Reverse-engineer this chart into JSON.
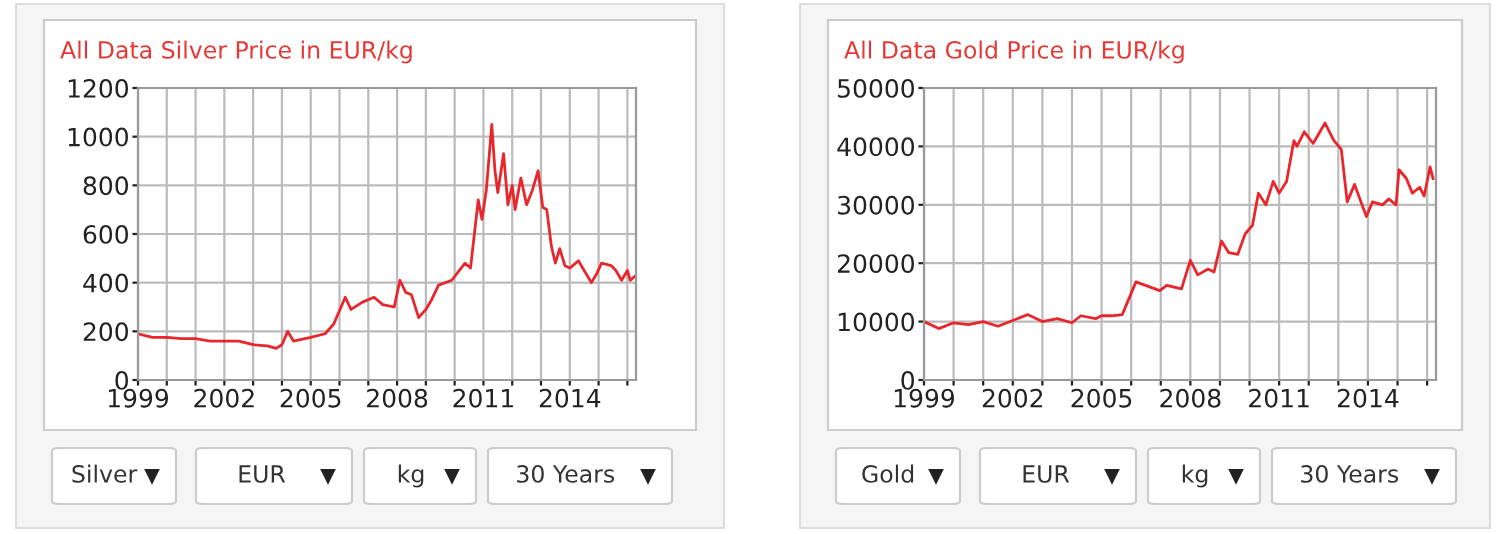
{
  "chart_data": [
    {
      "type": "line",
      "title": "All Data Silver Price in EUR/kg",
      "x": [
        1999.0,
        1999.5,
        2000.0,
        2000.5,
        2001.0,
        2001.5,
        2002.0,
        2002.5,
        2003.0,
        2003.5,
        2003.8,
        2004.0,
        2004.2,
        2004.4,
        2005.0,
        2005.5,
        2005.8,
        2006.2,
        2006.4,
        2006.8,
        2007.2,
        2007.5,
        2007.9,
        2008.1,
        2008.3,
        2008.5,
        2008.75,
        2009.0,
        2009.2,
        2009.44,
        2009.9,
        2010.36,
        2010.55,
        2010.82,
        2010.95,
        2011.1,
        2011.29,
        2011.4,
        2011.5,
        2011.7,
        2011.85,
        2012.0,
        2012.1,
        2012.3,
        2012.5,
        2012.7,
        2012.9,
        2013.06,
        2013.2,
        2013.36,
        2013.5,
        2013.65,
        2013.83,
        2014.0,
        2014.3,
        2014.5,
        2014.75,
        2014.95,
        2015.1,
        2015.44,
        2015.6,
        2015.8,
        2016.0,
        2016.1,
        2016.3
      ],
      "series": [
        {
          "color": "#e8262b",
          "values": [
            190,
            175,
            175,
            170,
            170,
            160,
            160,
            160,
            145,
            140,
            130,
            145,
            200,
            160,
            175,
            190,
            230,
            340,
            290,
            320,
            340,
            310,
            300,
            410,
            360,
            350,
            256,
            290,
            330,
            390,
            410,
            480,
            460,
            740,
            660,
            780,
            1050,
            860,
            770,
            930,
            720,
            800,
            700,
            830,
            720,
            780,
            860,
            710,
            700,
            550,
            480,
            540,
            470,
            460,
            490,
            450,
            400,
            440,
            480,
            470,
            450,
            410,
            450,
            410,
            430
          ]
        }
      ],
      "xlim": [
        1999,
        2016.3
      ],
      "xticks": [
        1999,
        {
          "value": 2000,
          "label": null
        },
        {
          "value": 2001,
          "label": null
        },
        2002,
        {
          "value": 2003,
          "label": null
        },
        {
          "value": 2004,
          "label": null
        },
        2005,
        {
          "value": 2006,
          "label": null
        },
        {
          "value": 2007,
          "label": null
        },
        2008,
        {
          "value": 2009,
          "label": null
        },
        {
          "value": 2010,
          "label": null
        },
        2011,
        {
          "value": 2012,
          "label": null
        },
        {
          "value": 2013,
          "label": null
        },
        2014,
        {
          "value": 2015,
          "label": null
        },
        {
          "value": 2016,
          "label": null
        }
      ],
      "ylim": [
        0,
        1200
      ],
      "yticks": [
        0,
        200,
        400,
        600,
        800,
        1000,
        1200
      ],
      "grid": true,
      "annotations": [
        "Silver",
        "EUR",
        "kg",
        "30 Years"
      ]
    },
    {
      "type": "line",
      "title": "All Data Gold Price in EUR/kg",
      "x": [
        1999.0,
        1999.5,
        2000.0,
        2000.5,
        2001.0,
        2001.5,
        2002.0,
        2002.5,
        2003.0,
        2003.5,
        2004.0,
        2004.3,
        2004.8,
        2005.0,
        2005.35,
        2005.7,
        2006.16,
        2006.97,
        2007.2,
        2007.7,
        2008.0,
        2008.25,
        2008.6,
        2008.8,
        2009.05,
        2009.3,
        2009.6,
        2009.85,
        2010.1,
        2010.3,
        2010.55,
        2010.8,
        2011.0,
        2011.25,
        2011.5,
        2011.6,
        2011.85,
        2012.15,
        2012.55,
        2012.85,
        2013.1,
        2013.3,
        2013.55,
        2013.8,
        2013.95,
        2014.15,
        2014.5,
        2014.7,
        2014.95,
        2015.05,
        2015.3,
        2015.5,
        2015.75,
        2015.9,
        2016.1,
        2016.2
      ],
      "series": [
        {
          "color": "#e8262b",
          "values": [
            10000,
            8800,
            9800,
            9500,
            10000,
            9200,
            10200,
            11200,
            10000,
            10500,
            9800,
            11000,
            10500,
            11000,
            11000,
            11200,
            16800,
            15300,
            16200,
            15600,
            20500,
            18000,
            19000,
            18500,
            23800,
            21800,
            21500,
            25000,
            26500,
            32000,
            30000,
            34000,
            32000,
            34000,
            41000,
            40000,
            42500,
            40500,
            44000,
            41000,
            39500,
            30500,
            33500,
            30000,
            28000,
            30500,
            30000,
            31000,
            30000,
            36000,
            34500,
            32000,
            33000,
            31500,
            36500,
            34500
          ]
        }
      ],
      "xlim": [
        1999,
        2016.3
      ],
      "xticks": [
        1999,
        {
          "value": 2000,
          "label": null
        },
        {
          "value": 2001,
          "label": null
        },
        2002,
        {
          "value": 2003,
          "label": null
        },
        {
          "value": 2004,
          "label": null
        },
        2005,
        {
          "value": 2006,
          "label": null
        },
        {
          "value": 2007,
          "label": null
        },
        2008,
        {
          "value": 2009,
          "label": null
        },
        {
          "value": 2010,
          "label": null
        },
        2011,
        {
          "value": 2012,
          "label": null
        },
        {
          "value": 2013,
          "label": null
        },
        2014,
        {
          "value": 2015,
          "label": null
        },
        {
          "value": 2016,
          "label": null
        }
      ],
      "ylim": [
        0,
        50000
      ],
      "yticks": [
        0,
        10000,
        20000,
        30000,
        40000,
        50000
      ],
      "grid": true,
      "annotations": [
        "Gold",
        "EUR",
        "kg",
        "30 Years"
      ]
    }
  ]
}
